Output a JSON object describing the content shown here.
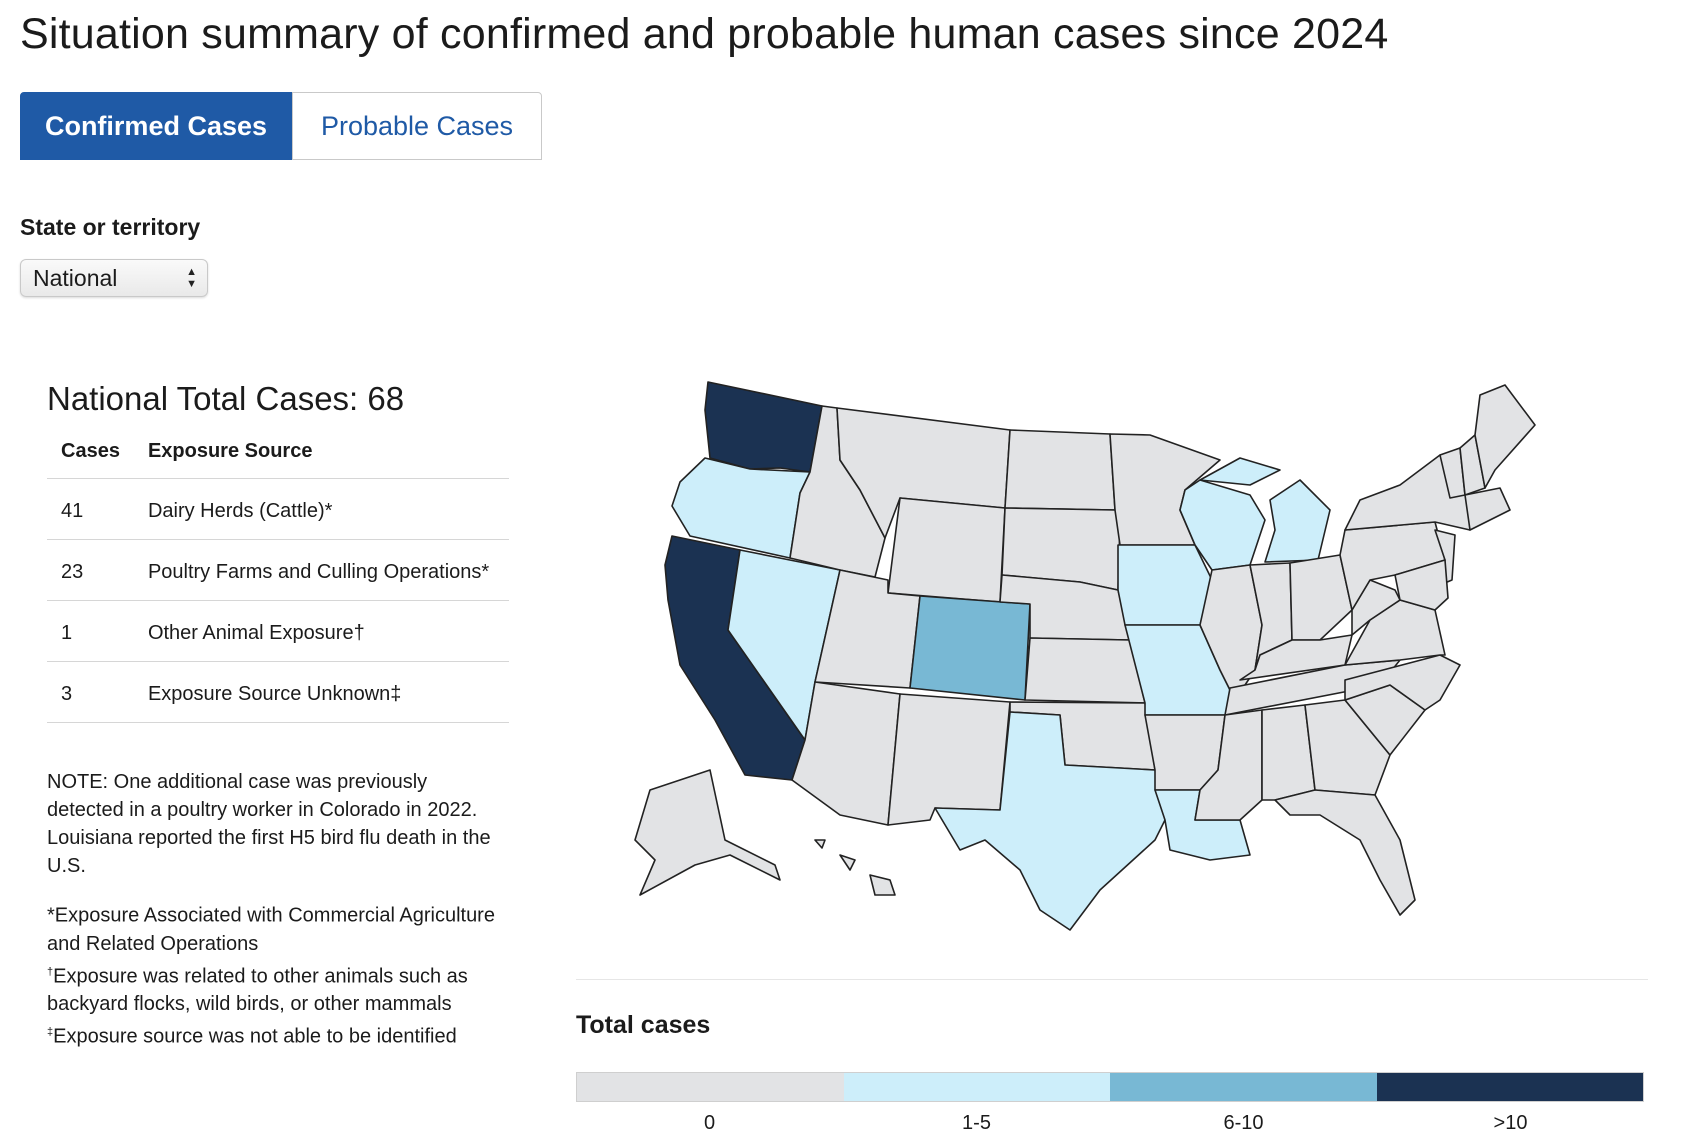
{
  "page": {
    "title": "Situation summary of confirmed and probable human cases since 2024"
  },
  "tabs": [
    {
      "label": "Confirmed Cases",
      "active": true
    },
    {
      "label": "Probable Cases",
      "active": false
    }
  ],
  "filter": {
    "label": "State or territory",
    "selected": "National"
  },
  "summary": {
    "heading": "National Total Cases: 68",
    "columns": [
      "Cases",
      "Exposure Source"
    ],
    "rows": [
      {
        "cases": "41",
        "source": "Dairy Herds (Cattle)*"
      },
      {
        "cases": "23",
        "source": "Poultry Farms and Culling Operations*"
      },
      {
        "cases": "1",
        "source": "Other Animal Exposure†"
      },
      {
        "cases": "3",
        "source": "Exposure Source Unknown‡"
      }
    ],
    "note": "NOTE: One additional case was previously detected in a poultry worker in Colorado in 2022. Louisiana reported the first H5 bird flu death in the U.S.",
    "footnotes": [
      {
        "mark": "",
        "text": "*Exposure Associated with Commercial Agriculture and Related Operations"
      },
      {
        "mark": "†",
        "text": "Exposure was related to other animals such as backyard flocks, wild birds, or other mammals"
      },
      {
        "mark": "‡",
        "text": "Exposure source was not able to be identified"
      }
    ]
  },
  "map": {
    "colors": {
      "zero": "#e2e3e5",
      "low": "#cdeefa",
      "mid": "#78b8d4",
      "high": "#1b3252"
    },
    "state_buckets": {
      "WA": "high",
      "CA": "high",
      "OR": "low",
      "NV": "low",
      "WI": "low",
      "MI": "low",
      "IA": "low",
      "MO": "low",
      "TX": "low",
      "LA": "low",
      "CO": "mid"
    }
  },
  "legend": {
    "title": "Total cases",
    "buckets": [
      {
        "label": "0",
        "color": "#e2e3e5"
      },
      {
        "label": "1-5",
        "color": "#cdeefa"
      },
      {
        "label": "6-10",
        "color": "#78b8d4"
      },
      {
        "label": ">10",
        "color": "#1b3252"
      }
    ]
  }
}
